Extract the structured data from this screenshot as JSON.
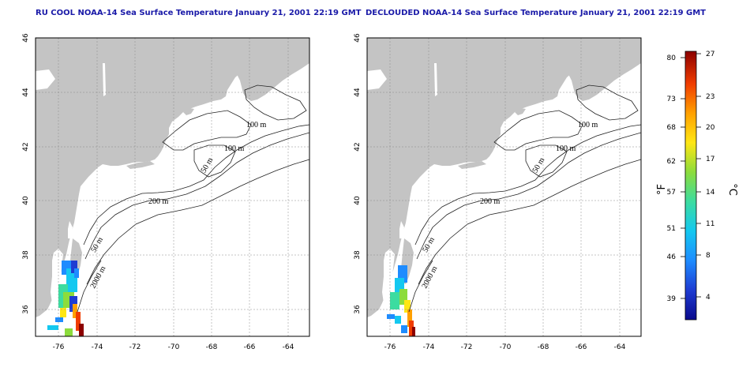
{
  "panels": [
    {
      "id": "left",
      "title": "RU COOL NOAA-14 Sea Surface Temperature January 21, 2001 22:19 GMT",
      "contour_labels": [
        "100 m",
        "100 m",
        "50 m",
        "200 m",
        "50 m",
        "2000 m"
      ]
    },
    {
      "id": "right",
      "title": "DECLOUDED NOAA-14 Sea Surface Temperature January 21, 2001 22:19 GMT",
      "contour_labels": [
        "100 m",
        "100 m",
        "50 m",
        "200 m",
        "50 m",
        "2000 m"
      ]
    }
  ],
  "axes": {
    "x_ticks": [
      "-76",
      "-74",
      "-72",
      "-70",
      "-68",
      "-66",
      "-64"
    ],
    "y_ticks": [
      "36",
      "38",
      "40",
      "42",
      "44",
      "46"
    ],
    "lon_range": [
      -77.2,
      -62.9
    ],
    "lat_range": [
      35,
      46
    ],
    "grid": true
  },
  "colorbar": {
    "fahrenheit_label": "°F",
    "celsius_label": "°C",
    "fahrenheit_ticks": [
      "80",
      "73",
      "68",
      "62",
      "57",
      "51",
      "46",
      "39"
    ],
    "celsius_ticks": [
      "27",
      "23",
      "20",
      "17",
      "14",
      "11",
      "8",
      "4"
    ],
    "colors": [
      "#0a0a8c",
      "#1e3cd2",
      "#1e8cff",
      "#14c8f0",
      "#3cdca0",
      "#8cdc3c",
      "#ffe614",
      "#ffa000",
      "#f03c00",
      "#8c0000"
    ]
  },
  "colors": {
    "land": "#c4c4c4",
    "ocean": "#ffffff",
    "title": "#1a1aa8"
  }
}
